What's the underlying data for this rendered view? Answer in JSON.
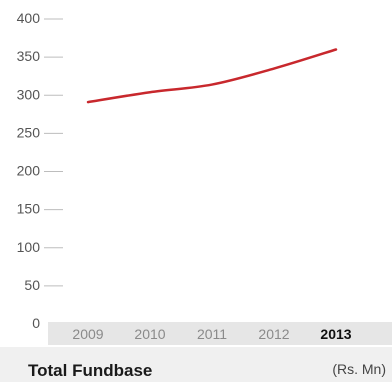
{
  "chart_data": {
    "type": "line",
    "categories": [
      "2009",
      "2010",
      "2011",
      "2012",
      "2013"
    ],
    "highlight_category": "2013",
    "series": [
      {
        "values": [
          291,
          304,
          314,
          335,
          360
        ],
        "color": "#c8282d"
      }
    ],
    "y_ticks": [
      "0",
      "50",
      "100",
      "150",
      "200",
      "250",
      "300",
      "350",
      "400"
    ],
    "ylim": [
      0,
      400
    ],
    "title": "Total Fundbase",
    "unit": "(Rs. Mn)",
    "grid": "horizontal-short",
    "colors": {
      "line": "#c8282d",
      "axis_band": "#e6e6e6",
      "footer_band": "#f0f0f0"
    }
  }
}
